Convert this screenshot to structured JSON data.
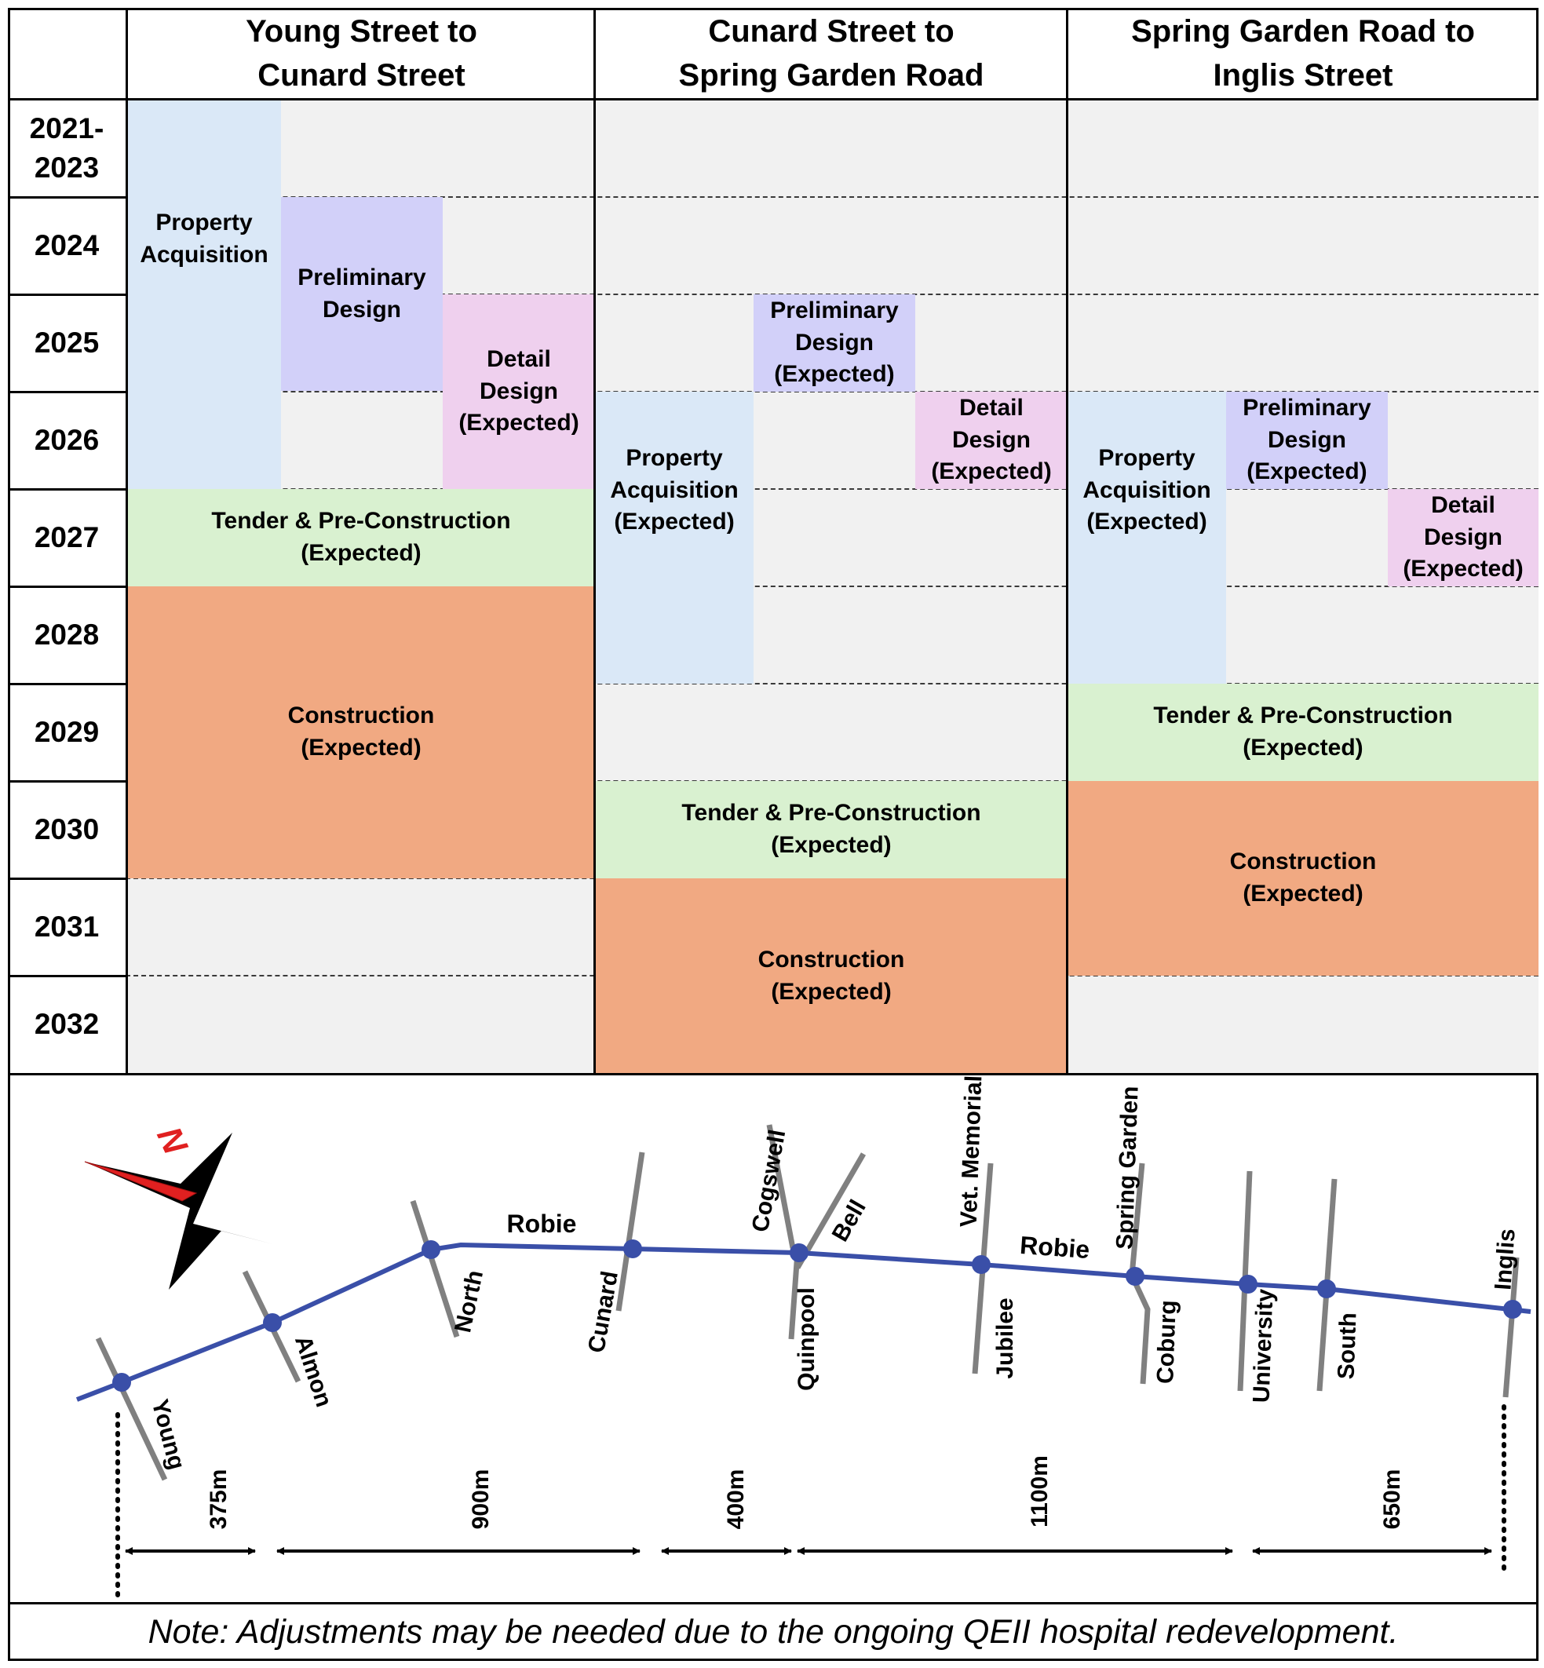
{
  "header": {
    "columns": [
      "Young Street to\nCunard Street",
      "Cunard Street to\nSpring Garden Road",
      "Spring Garden Road to\nInglis Street"
    ]
  },
  "years": [
    "2021-\n2023",
    "2024",
    "2025",
    "2026",
    "2027",
    "2028",
    "2029",
    "2030",
    "2031",
    "2032"
  ],
  "phases": {
    "property_acquisition": "Property\nAcquisition",
    "property_acquisition_expected": "Property\nAcquisition\n(Expected)",
    "preliminary_design": "Preliminary\nDesign",
    "preliminary_design_expected": "Preliminary\nDesign\n(Expected)",
    "detail_design_expected": "Detail\nDesign\n(Expected)",
    "tender_expected": "Tender & Pre-Construction\n(Expected)",
    "construction_expected": "Construction\n(Expected)"
  },
  "colors": {
    "property_acquisition": "#dae8f7",
    "preliminary_design": "#d2d0f9",
    "detail_design": "#efd0ee",
    "tender": "#d9f1d0",
    "construction": "#f1a982",
    "empty_cell": "#f1f1f1",
    "route_line": "#3a4fa8",
    "cross_street": "#808080",
    "north_arrow": "#e02020"
  },
  "map": {
    "north_label": "N",
    "route_labels": [
      "Robie",
      "Robie"
    ],
    "cross_streets": [
      "Young",
      "Almon",
      "North",
      "Cunard",
      "Cogswell",
      "Bell",
      "Quinpool",
      "Vet. Memorial",
      "Jubilee",
      "Spring Garden",
      "Coburg",
      "University",
      "South",
      "Inglis"
    ],
    "distances": [
      "375m",
      "900m",
      "400m",
      "1100m",
      "650m"
    ]
  },
  "note": "Note: Adjustments may be needed due to the ongoing QEII hospital redevelopment."
}
